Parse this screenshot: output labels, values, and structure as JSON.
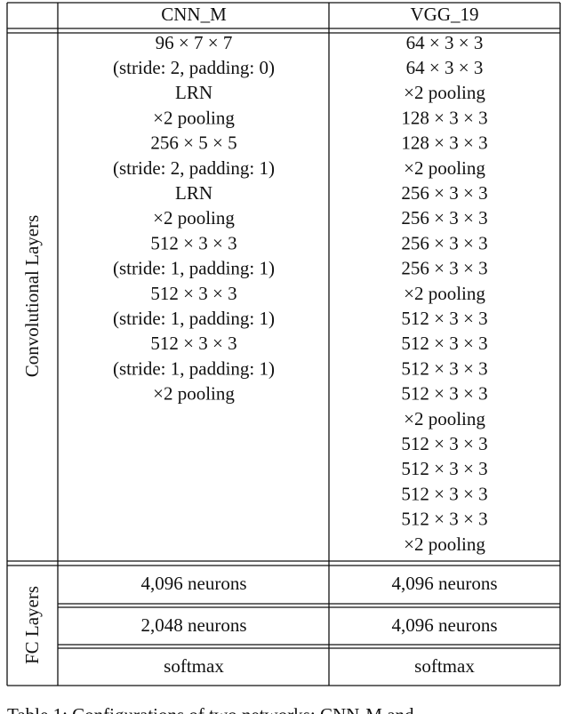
{
  "header": {
    "cnn_m": "CNN_M",
    "vgg_19": "VGG_19"
  },
  "conv": {
    "label": "Convolutional Layers",
    "cnn_m": [
      "96 × 7 × 7",
      "(stride: 2, padding: 0)",
      "LRN",
      "×2 pooling",
      "256 × 5 × 5",
      "(stride: 2, padding: 1)",
      "LRN",
      "×2 pooling",
      "512 × 3 × 3",
      "(stride: 1, padding: 1)",
      "512 × 3 × 3",
      "(stride: 1, padding: 1)",
      "512 × 3 × 3",
      "(stride: 1, padding: 1)",
      "×2 pooling"
    ],
    "vgg_19": [
      "64 × 3 × 3",
      "64 × 3 × 3",
      "×2 pooling",
      "128 × 3 × 3",
      "128 × 3 × 3",
      "×2 pooling",
      "256 × 3 × 3",
      "256 × 3 × 3",
      "256 × 3 × 3",
      "256 × 3 × 3",
      "×2 pooling",
      "512 × 3 × 3",
      "512 × 3 × 3",
      "512 × 3 × 3",
      "512 × 3 × 3",
      "×2 pooling",
      "512 × 3 × 3",
      "512 × 3 × 3",
      "512 × 3 × 3",
      "512 × 3 × 3",
      "×2 pooling"
    ]
  },
  "fc": {
    "label": "FC Layers",
    "rows": [
      [
        "4,096 neurons",
        "4,096 neurons"
      ],
      [
        "2,048 neurons",
        "4,096 neurons"
      ],
      [
        "softmax",
        "softmax"
      ]
    ]
  },
  "caption": "Table 1: Configurations of two networks: CNN-M and"
}
